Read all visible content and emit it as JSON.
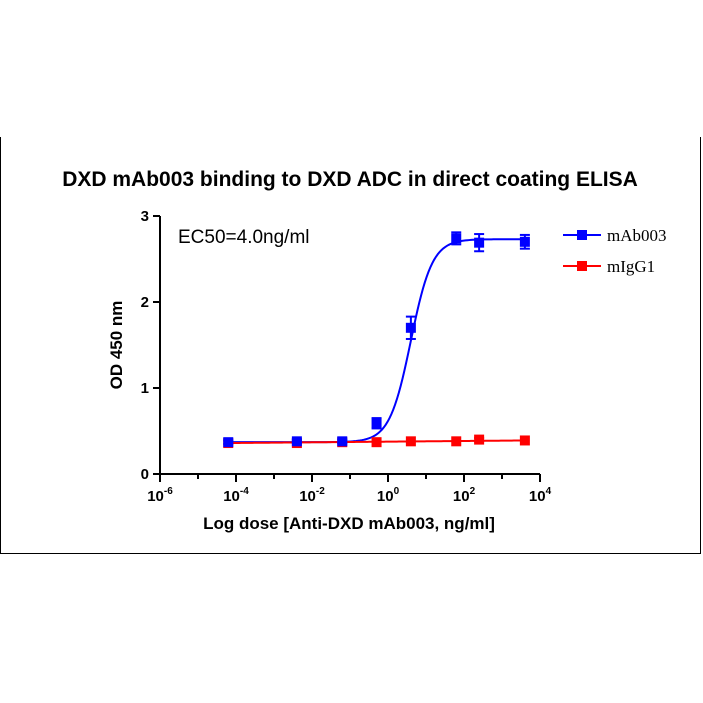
{
  "chart_data": {
    "type": "scatter",
    "title": "DXD mAb003 binding to DXD ADC in direct coating ELISA",
    "xlabel": "Log dose [Anti-DXD mAb003, ng/ml]",
    "ylabel": "OD 450 nm",
    "xscale": "log",
    "xlim": [
      1e-06,
      10000
    ],
    "ylim": [
      0,
      3
    ],
    "x_ticks": [
      {
        "base": "10",
        "exp": "-6",
        "value": 1e-06
      },
      {
        "base": "10",
        "exp": "-4",
        "value": 0.0001
      },
      {
        "base": "10",
        "exp": "-2",
        "value": 0.01
      },
      {
        "base": "10",
        "exp": "0",
        "value": 1
      },
      {
        "base": "10",
        "exp": "2",
        "value": 100
      },
      {
        "base": "10",
        "exp": "4",
        "value": 10000
      }
    ],
    "y_ticks": [
      "0",
      "1",
      "2",
      "3"
    ],
    "annotation": "EC50=4.0ng/ml",
    "legend_position": "top-right",
    "grid": false,
    "series": [
      {
        "name": "mAb003",
        "color": "#0000ff",
        "marker": "square",
        "x": [
          6.25e-05,
          0.004,
          0.0625,
          0.5,
          4,
          62.5,
          250,
          4000
        ],
        "y": [
          0.37,
          0.38,
          0.38,
          0.59,
          1.7,
          2.74,
          2.69,
          2.7
        ],
        "error": [
          0.02,
          0.02,
          0.02,
          0.06,
          0.13,
          0.07,
          0.1,
          0.08
        ],
        "fit": {
          "bottom": 0.37,
          "top": 2.73,
          "ec50": 4.0,
          "hill": 1.55
        }
      },
      {
        "name": "mIgG1",
        "color": "#ff0000",
        "marker": "square",
        "x": [
          6.25e-05,
          0.004,
          0.0625,
          0.5,
          4,
          62.5,
          250,
          4000
        ],
        "y": [
          0.36,
          0.36,
          0.37,
          0.37,
          0.38,
          0.38,
          0.4,
          0.39
        ],
        "error": [
          0.01,
          0.01,
          0.01,
          0.01,
          0.01,
          0.01,
          0.02,
          0.01
        ],
        "fit": {
          "type": "linear",
          "start": 0.36,
          "end": 0.39
        }
      }
    ]
  }
}
